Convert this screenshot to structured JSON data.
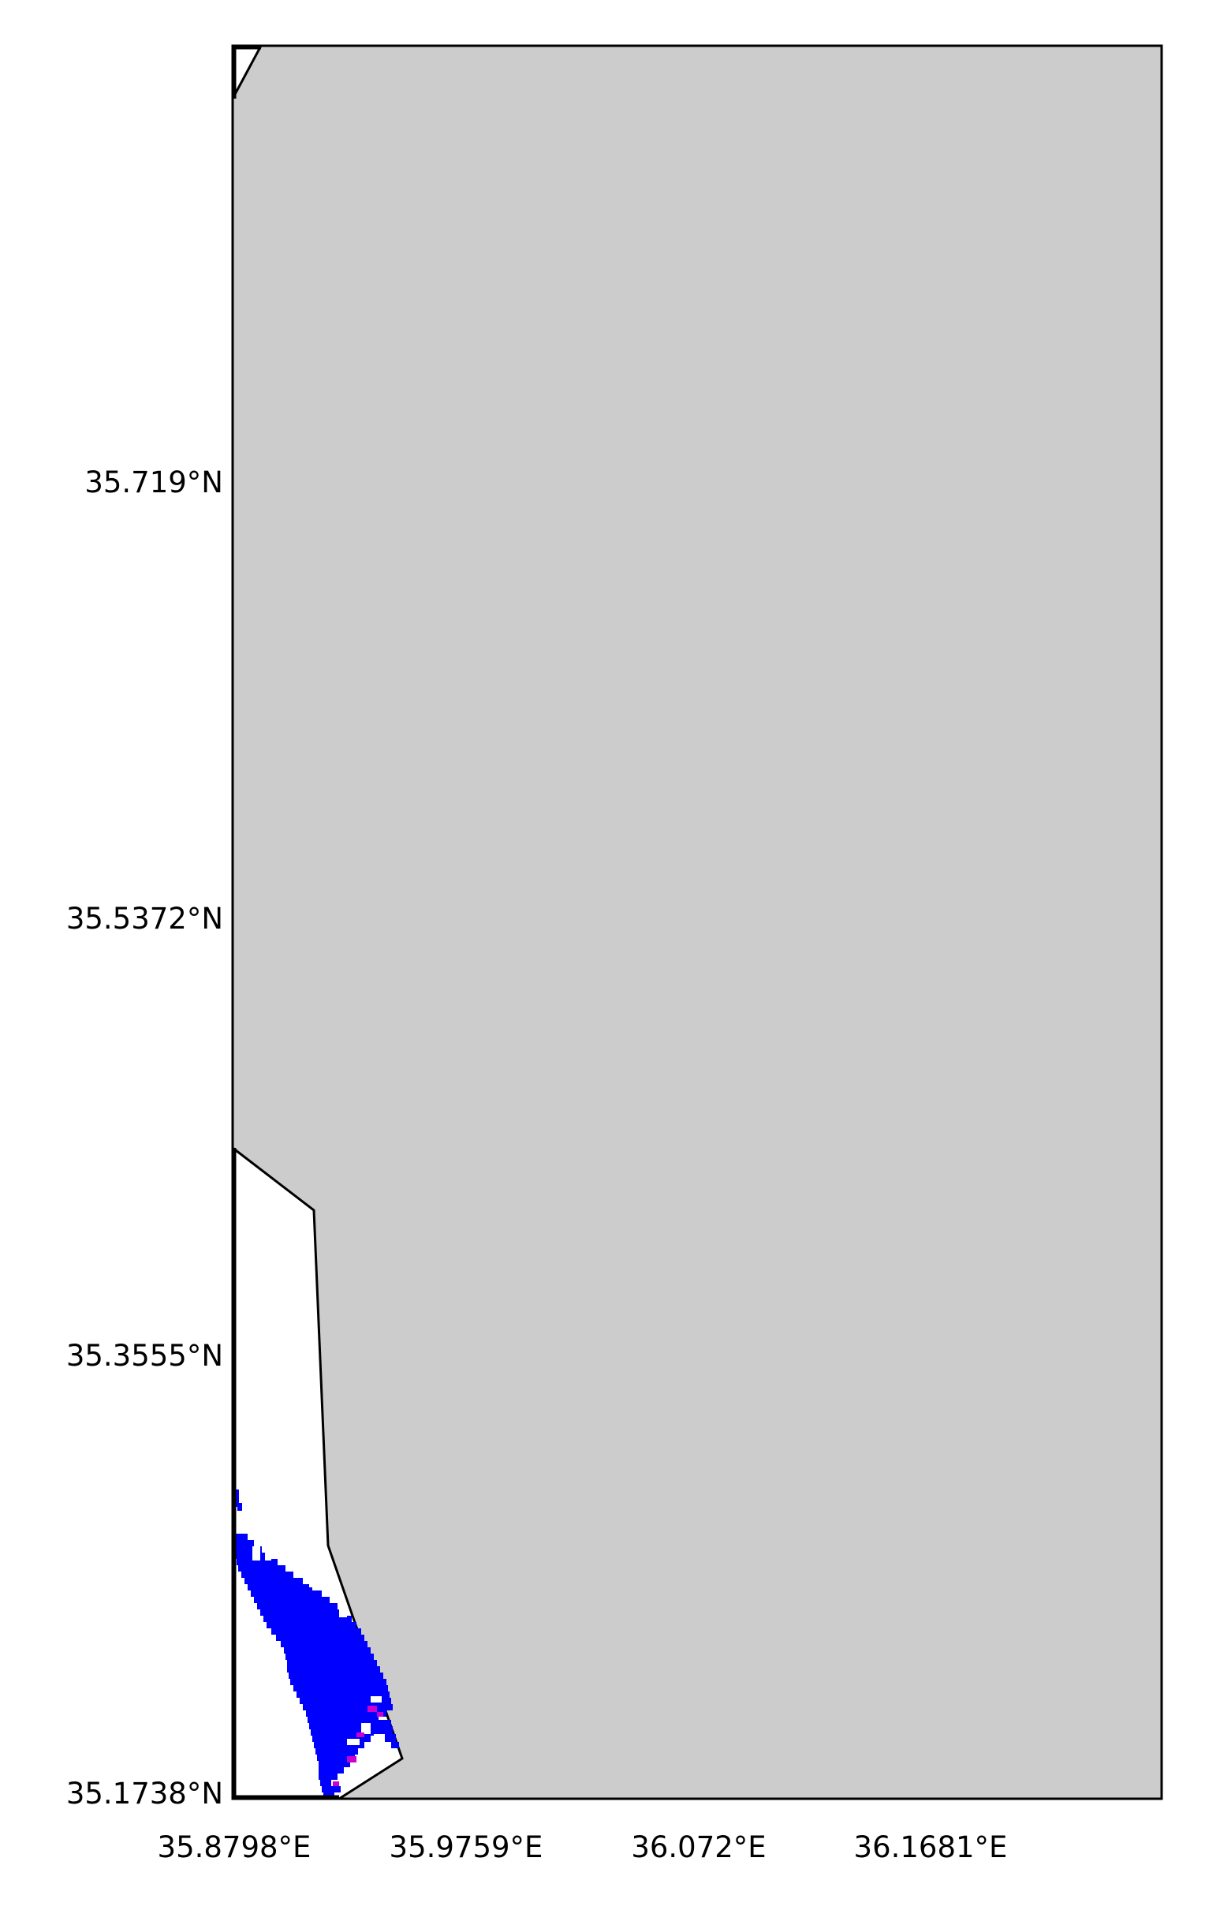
{
  "map": {
    "colors": {
      "background": "#ffffff",
      "land": "#cccccc",
      "water": "#ffffff",
      "border": "#000000",
      "observation_low": "#0000ff",
      "observation_high": "#cc00cc"
    },
    "lat_ticks": [
      "35.719°N",
      "35.5372°N",
      "35.3555°N",
      "35.1738°N"
    ],
    "lon_ticks": [
      "35.8798°E",
      "35.9759°E",
      "36.072°E",
      "36.1681°E"
    ]
  }
}
